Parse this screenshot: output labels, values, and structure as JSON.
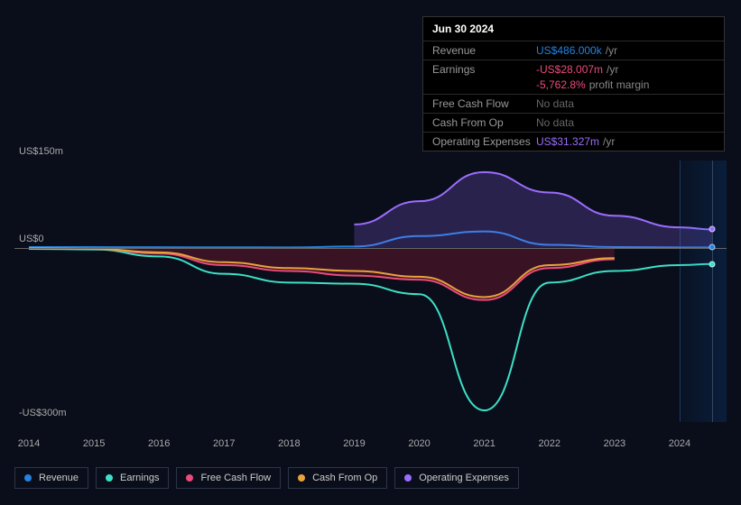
{
  "background_color": "#0a0e1a",
  "chart": {
    "type": "area-line",
    "x_years": [
      2014,
      2015,
      2016,
      2017,
      2018,
      2019,
      2020,
      2021,
      2022,
      2023,
      2024,
      2024.5
    ],
    "ylim": [
      -300,
      150
    ],
    "y_ticks": [
      {
        "v": 150,
        "label": "US$150m"
      },
      {
        "v": 0,
        "label": "US$0"
      },
      {
        "v": -300,
        "label": "-US$300m"
      }
    ],
    "grid_color": "#1a2030",
    "zero_color": "#666",
    "forecast_start_year": 2024,
    "hover_year": 2024.5,
    "series": {
      "revenue": {
        "label": "Revenue",
        "color": "#2383e2",
        "values_m": [
          1,
          1,
          0.8,
          0.6,
          0.5,
          2,
          20,
          28,
          5,
          1,
          0.5,
          0.486
        ],
        "end_dot": true
      },
      "earnings": {
        "label": "Earnings",
        "color": "#3de0c6",
        "values_m": [
          -2,
          -3,
          -15,
          -45,
          -60,
          -62,
          -80,
          -280,
          -60,
          -40,
          -30,
          -28.007
        ],
        "end_dot": true
      },
      "fcf": {
        "label": "Free Cash Flow",
        "color": "#ea4b7a",
        "values_m": [
          -1,
          -2,
          -10,
          -30,
          -40,
          -48,
          -55,
          -90,
          -35,
          -20,
          null,
          null
        ],
        "neg_fill": true
      },
      "cfo": {
        "label": "Cash From Op",
        "color": "#e8a33d",
        "values_m": [
          -1,
          -2,
          -8,
          -25,
          -35,
          -40,
          -50,
          -85,
          -30,
          -18,
          null,
          null
        ]
      },
      "opex": {
        "label": "Operating Expenses",
        "color": "#9b6dff",
        "values_m": [
          null,
          null,
          null,
          null,
          null,
          40,
          80,
          130,
          95,
          55,
          35,
          31.327
        ],
        "pos_fill": true,
        "end_dot": true
      }
    },
    "legend_order": [
      "revenue",
      "earnings",
      "fcf",
      "cfo",
      "opex"
    ]
  },
  "tooltip": {
    "date": "Jun 30 2024",
    "rows": [
      {
        "label": "Revenue",
        "value": "US$486.000k",
        "suffix": "/yr",
        "color": "#2383e2"
      },
      {
        "label": "Earnings",
        "value": "-US$28.007m",
        "suffix": "/yr",
        "color": "#ea4b7a"
      },
      {
        "label": "",
        "value": "-5,762.8%",
        "suffix": "profit margin",
        "color": "#ea4b7a",
        "sub": true
      },
      {
        "label": "Free Cash Flow",
        "value": "No data",
        "nodata": true
      },
      {
        "label": "Cash From Op",
        "value": "No data",
        "nodata": true
      },
      {
        "label": "Operating Expenses",
        "value": "US$31.327m",
        "suffix": "/yr",
        "color": "#9b6dff"
      }
    ]
  }
}
